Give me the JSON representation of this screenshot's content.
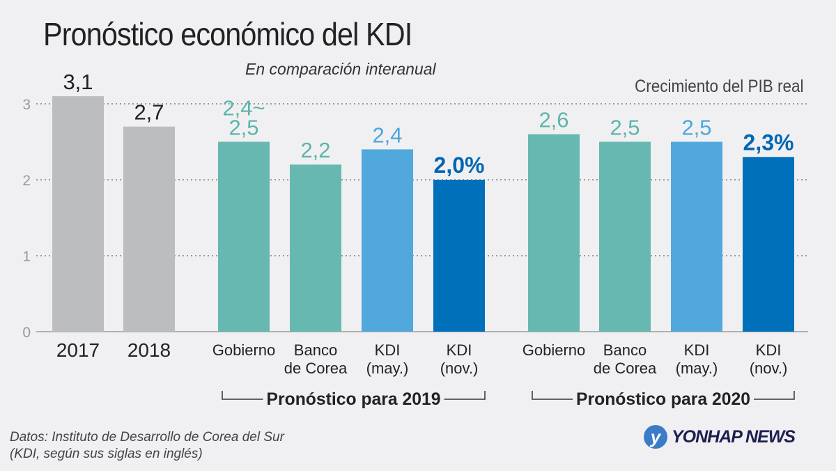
{
  "header": {
    "title": "Pronóstico económico del KDI",
    "subtitle": "En comparación interanual",
    "unit_label": "Crecimiento del PIB real"
  },
  "footer": {
    "source_line1": "Datos: Instituto de Desarrollo de Corea del Sur",
    "source_line2": "(KDI, según sus siglas en inglés)",
    "logo_text": "YONHAP NEWS",
    "logo_mark": "y"
  },
  "chart_data": {
    "type": "bar",
    "title": "Pronóstico económico del KDI",
    "subtitle": "En comparación interanual",
    "ylabel": "Crecimiento del PIB real",
    "ylim": [
      0,
      3
    ],
    "yticks": [
      "0",
      "1",
      "2",
      "3"
    ],
    "grid": true,
    "categories": [
      "2017",
      "2018",
      "Gobierno",
      "Banco\nde Corea",
      "KDI\n(may.)",
      "KDI\n(nov.)",
      "Gobierno",
      "Banco\nde Corea",
      "KDI\n(may.)",
      "KDI\n(nov.)"
    ],
    "values": [
      3.1,
      2.7,
      2.5,
      2.2,
      2.4,
      2.0,
      2.6,
      2.5,
      2.5,
      2.3
    ],
    "value_labels": [
      "3,1",
      "2,7",
      "2,4~\n2,5",
      "2,2",
      "2,4",
      "2,0%",
      "2,6",
      "2,5",
      "2,5",
      "2,3%"
    ],
    "colors": [
      "#bcbdbf",
      "#bcbdbf",
      "#66b8b0",
      "#66b8b0",
      "#50a8dc",
      "#0070bb",
      "#66b8b0",
      "#66b8b0",
      "#50a8dc",
      "#0070bb"
    ],
    "label_colors": [
      "#222222",
      "#222222",
      "#5bb5aa",
      "#5bb5aa",
      "#4aa6dd",
      "#0066b3",
      "#5bb5aa",
      "#5bb5aa",
      "#4aa6dd",
      "#0066b3"
    ],
    "groups": [
      {
        "label": "Pronóstico para 2019",
        "from": 2,
        "to": 5
      },
      {
        "label": "Pronóstico para 2020",
        "from": 6,
        "to": 9
      }
    ]
  }
}
